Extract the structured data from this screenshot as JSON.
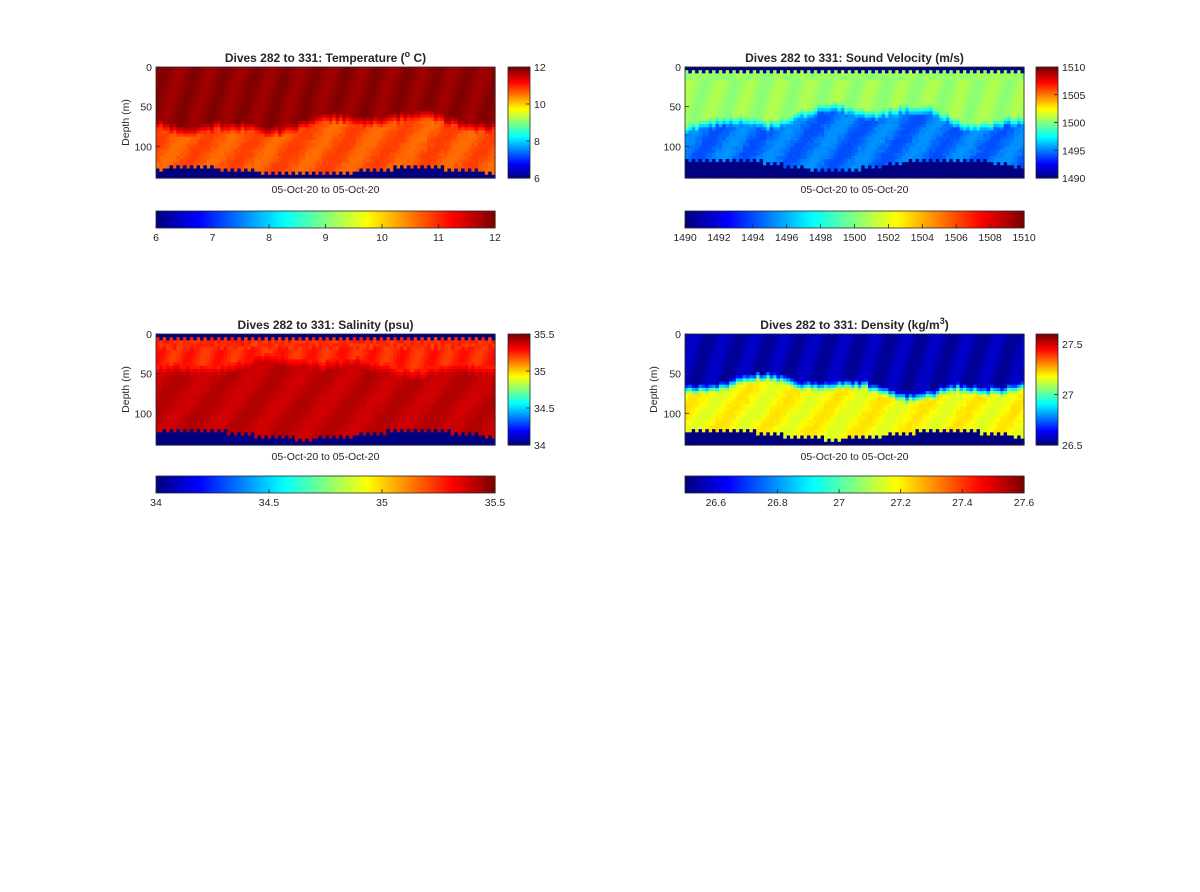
{
  "chart_data": [
    {
      "type": "heatmap",
      "title_prefix": "Dives 282 to 331: Temperature (",
      "title_sup": "o",
      "title_suffix": " C)",
      "xlabel": "05-Oct-20 to 05-Oct-20",
      "ylabel": "Depth (m)",
      "ylim": [
        0,
        140
      ],
      "yticks": [
        "0",
        "50",
        "100"
      ],
      "clim": [
        6,
        12
      ],
      "side_colorbar_ticks": [
        "12",
        "10",
        "8",
        "6"
      ],
      "bottom_colorbar_ticks": [
        "6",
        "7",
        "8",
        "9",
        "10",
        "11",
        "12"
      ],
      "colormap": "jet",
      "dives": 50,
      "profile": {
        "surface_value": 12,
        "surface_layer_depth": 0,
        "surface_alt": null,
        "layers": [
          [
            11.8,
            12.0
          ],
          [
            10.6,
            10.9
          ]
        ],
        "transition_depth_mean": 70,
        "transition_depth_range": [
          58,
          88
        ],
        "bottom_depth_range": [
          123,
          137
        ],
        "below_bottom": 6
      }
    },
    {
      "type": "heatmap",
      "title_prefix": "Dives 282 to 331: Sound Velocity (m/s)",
      "title_sup": "",
      "title_suffix": "",
      "xlabel": "05-Oct-20 to 05-Oct-20",
      "ylabel": "",
      "ylim": [
        0,
        140
      ],
      "yticks": [
        "0",
        "50",
        "100"
      ],
      "clim": [
        1490,
        1510
      ],
      "side_colorbar_ticks": [
        "1510",
        "1505",
        "1500",
        "1495",
        "1490"
      ],
      "bottom_colorbar_ticks": [
        "1490",
        "1492",
        "1494",
        "1496",
        "1498",
        "1500",
        "1502",
        "1504",
        "1506",
        "1508",
        "1510"
      ],
      "colormap": "jet",
      "dives": 50,
      "profile": {
        "surface_value": 1490,
        "surface_layer_depth": 6,
        "surface_alt": 1500.5,
        "layers": [
          [
            1500.2,
            1501.0
          ],
          [
            1494.0,
            1495.4
          ]
        ],
        "transition_depth_mean": 62,
        "transition_depth_range": [
          45,
          85
        ],
        "bottom_depth_range": [
          112,
          135
        ],
        "below_bottom": 1490
      }
    },
    {
      "type": "heatmap",
      "title_prefix": "Dives 282 to 331: Salinity (psu)",
      "title_sup": "",
      "title_suffix": "",
      "xlabel": "05-Oct-20 to 05-Oct-20",
      "ylabel": "Depth (m)",
      "ylim": [
        0,
        140
      ],
      "yticks": [
        "0",
        "50",
        "100"
      ],
      "clim": [
        34,
        35.5
      ],
      "side_colorbar_ticks": [
        "35.5",
        "35",
        "34.5",
        "34"
      ],
      "bottom_colorbar_ticks": [
        "34",
        "34.5",
        "35",
        "35.5"
      ],
      "colormap": "jet",
      "dives": 50,
      "profile": {
        "surface_value": 34,
        "surface_layer_depth": 8,
        "surface_alt": 35.25,
        "layers": [
          [
            35.22,
            35.3
          ],
          [
            35.38,
            35.43
          ]
        ],
        "transition_depth_mean": 40,
        "transition_depth_range": [
          28,
          55
        ],
        "bottom_depth_range": [
          118,
          135
        ],
        "below_bottom": 34
      }
    },
    {
      "type": "heatmap",
      "title_prefix": "Dives 282 to 331: Density (kg/m",
      "title_sup": "3",
      "title_suffix": ")",
      "xlabel": "05-Oct-20 to 05-Oct-20",
      "ylabel": "Depth (m)",
      "ylim": [
        0,
        140
      ],
      "yticks": [
        "0",
        "50",
        "100"
      ],
      "clim": [
        26.5,
        27.6
      ],
      "side_colorbar_ticks": [
        "27.5",
        "27",
        "26.5"
      ],
      "bottom_colorbar_ticks": [
        "26.6",
        "26.8",
        "27",
        "27.2",
        "27.4",
        "27.6"
      ],
      "colormap": "jet",
      "dives": 50,
      "profile": {
        "surface_value": 26.52,
        "surface_layer_depth": 0,
        "surface_alt": null,
        "layers": [
          [
            26.52,
            26.58
          ],
          [
            27.15,
            27.22
          ]
        ],
        "transition_depth_mean": 65,
        "transition_depth_range": [
          50,
          85
        ],
        "bottom_depth_range": [
          118,
          135
        ],
        "below_bottom": 26.5
      }
    }
  ]
}
